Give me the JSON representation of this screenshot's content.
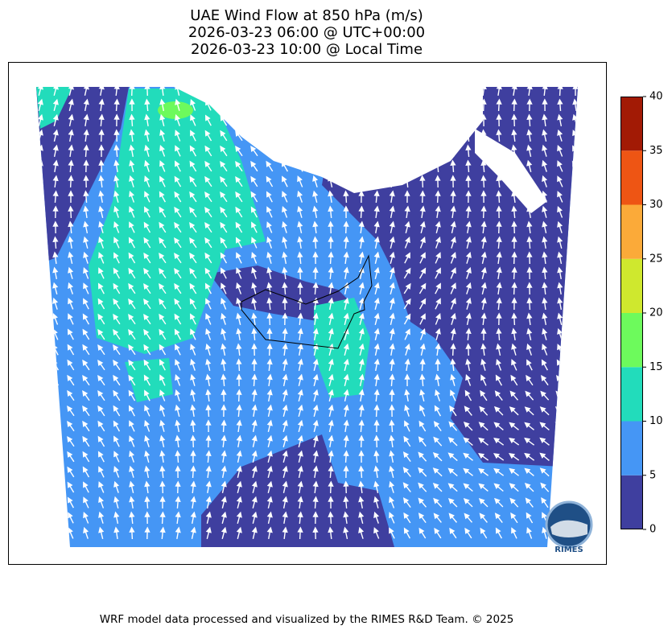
{
  "title": [
    "UAE Wind Flow at 850 hPa (m/s)",
    "2026-03-23 06:00 @ UTC+00:00",
    "2026-03-23 10:00 @ Local Time"
  ],
  "colorbar": {
    "ticks": [
      0,
      5,
      10,
      15,
      20,
      25,
      30,
      35,
      40
    ],
    "colors": [
      "#3f3f9f",
      "#4596f5",
      "#22dcbb",
      "#6dfa5c",
      "#cfe82e",
      "#fbaa39",
      "#ee5514",
      "#a21a05"
    ]
  },
  "logo": "RIMES",
  "footer": "WRF model data processed and visualized by the RIMES R&D Team. © 2025"
}
